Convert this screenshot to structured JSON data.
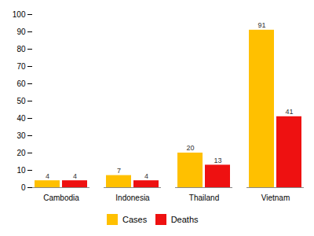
{
  "chart_data": {
    "type": "bar",
    "categories": [
      "Cambodia",
      "Indonesia",
      "Thailand",
      "Vietnam"
    ],
    "series": [
      {
        "name": "Cases",
        "color": "#FFC000",
        "values": [
          4,
          7,
          20,
          91
        ]
      },
      {
        "name": "Deaths",
        "color": "#EE1111",
        "values": [
          4,
          4,
          13,
          41
        ]
      }
    ],
    "ylim": [
      0,
      100
    ],
    "yticks": [
      0,
      10,
      20,
      30,
      40,
      50,
      60,
      70,
      80,
      90,
      100
    ],
    "grid": false,
    "legend": "bottom",
    "data_labels": true
  }
}
